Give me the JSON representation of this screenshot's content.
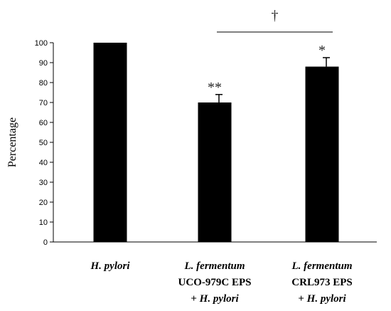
{
  "chart_data": {
    "type": "bar",
    "ylabel": "Percentage",
    "ylim": [
      0,
      100
    ],
    "yticks": [
      0,
      10,
      20,
      30,
      40,
      50,
      60,
      70,
      80,
      90,
      100
    ],
    "categories": [
      {
        "lines": [
          {
            "text": "H. pylori",
            "italic": true
          }
        ]
      },
      {
        "lines": [
          {
            "text": "L. fermentum",
            "italic": true
          },
          {
            "text": "UCO-979C EPS",
            "italic": false
          },
          {
            "text": "+ ",
            "italic": false,
            "suffix": "H. pylori"
          }
        ]
      },
      {
        "lines": [
          {
            "text": "L. fermentum",
            "italic": true
          },
          {
            "text": "CRL973  EPS",
            "italic": false
          },
          {
            "text": "+ ",
            "italic": false,
            "suffix": "H. pylori"
          }
        ]
      }
    ],
    "values": [
      100,
      70,
      88
    ],
    "errors": [
      0,
      4,
      4.5
    ],
    "bar_color": "#000000",
    "annotations": [
      "",
      "**",
      "*"
    ],
    "bracket": {
      "from": 1,
      "to": 2,
      "label": "†"
    },
    "grid": false
  }
}
